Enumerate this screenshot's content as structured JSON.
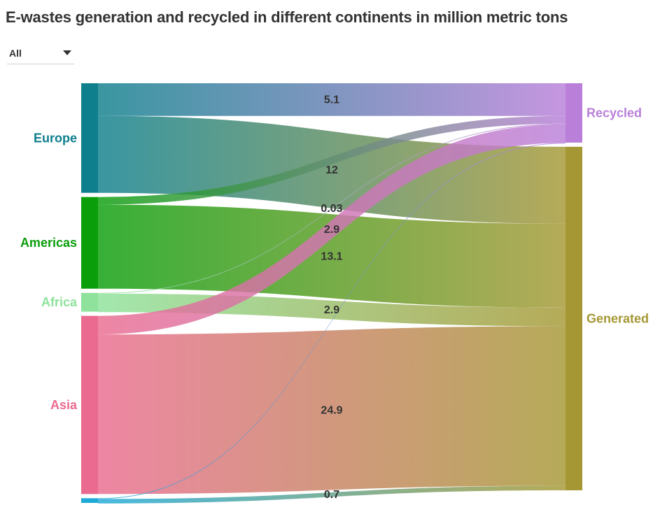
{
  "title": "E-wastes generation and recycled in different continents in million metric tons",
  "filter": {
    "selected": "All"
  },
  "chart_data": {
    "type": "sankey",
    "sources": [
      {
        "name": "Europe",
        "color": "#0e7f8c"
      },
      {
        "name": "Americas",
        "color": "#0b9e0b"
      },
      {
        "name": "Africa",
        "color": "#8ee29b"
      },
      {
        "name": "Asia",
        "color": "#ea6b8f"
      },
      {
        "name": "",
        "color": "#1ea9d8"
      }
    ],
    "targets": [
      {
        "name": "Recycled",
        "color": "#b97fd9"
      },
      {
        "name": "Generated",
        "color": "#a59834"
      }
    ],
    "links": [
      {
        "source": "Europe",
        "target": "Recycled",
        "value": 5.1,
        "label": "5.1"
      },
      {
        "source": "Europe",
        "target": "Generated",
        "value": 12,
        "label": "12"
      },
      {
        "source": "Americas",
        "target": "Recycled",
        "value": 1.2,
        "label": ""
      },
      {
        "source": "Americas",
        "target": "Generated",
        "value": 13.1,
        "label": "13.1"
      },
      {
        "source": "Africa",
        "target": "Recycled",
        "value": 0.03,
        "label": "0.03"
      },
      {
        "source": "Africa",
        "target": "Generated",
        "value": 2.9,
        "label": "2.9"
      },
      {
        "source": "Asia",
        "target": "Recycled",
        "value": 2.9,
        "label": "2.9"
      },
      {
        "source": "Asia",
        "target": "Generated",
        "value": 24.9,
        "label": "24.9"
      },
      {
        "source": "",
        "target": "Recycled",
        "value": 0.03,
        "label": ""
      },
      {
        "source": "",
        "target": "Generated",
        "value": 0.7,
        "label": "0.7"
      }
    ]
  }
}
